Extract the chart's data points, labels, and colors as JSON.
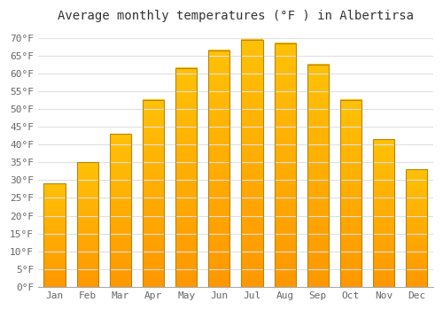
{
  "title": "Average monthly temperatures (°F ) in Albertirsa",
  "months": [
    "Jan",
    "Feb",
    "Mar",
    "Apr",
    "May",
    "Jun",
    "Jul",
    "Aug",
    "Sep",
    "Oct",
    "Nov",
    "Dec"
  ],
  "values": [
    29,
    35,
    43,
    52.5,
    61.5,
    66.5,
    69.5,
    68.5,
    62.5,
    52.5,
    41.5,
    33
  ],
  "bar_color_top": "#FFC107",
  "bar_color_bottom": "#FF9800",
  "bar_edge_color": "#B8860B",
  "background_color": "#FFFFFF",
  "grid_color": "#E0E0E0",
  "ylim": [
    0,
    73
  ],
  "yticks": [
    0,
    5,
    10,
    15,
    20,
    25,
    30,
    35,
    40,
    45,
    50,
    55,
    60,
    65,
    70
  ],
  "title_fontsize": 10,
  "tick_fontsize": 8,
  "title_color": "#333333",
  "tick_color": "#666666",
  "bar_width": 0.65
}
